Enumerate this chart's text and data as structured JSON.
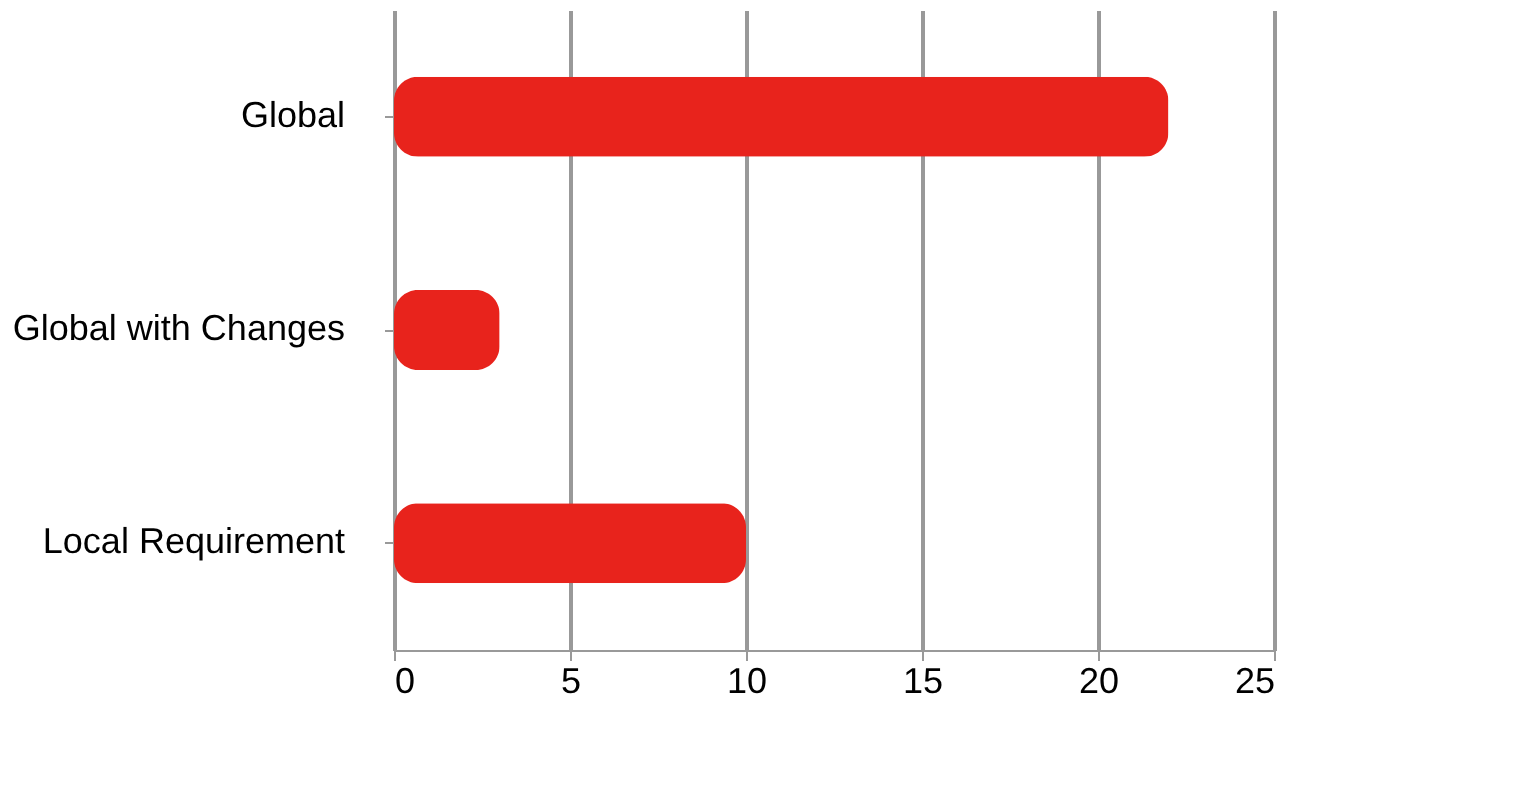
{
  "chart_data": {
    "type": "bar",
    "orientation": "horizontal",
    "categories": [
      "Global",
      "Global with Changes",
      "Local Requirement"
    ],
    "values": [
      22,
      3,
      10
    ],
    "color": "#e8231c",
    "xlim": [
      0,
      25
    ],
    "xticks": [
      0,
      5,
      10,
      15,
      20,
      25
    ],
    "grid": "x"
  }
}
